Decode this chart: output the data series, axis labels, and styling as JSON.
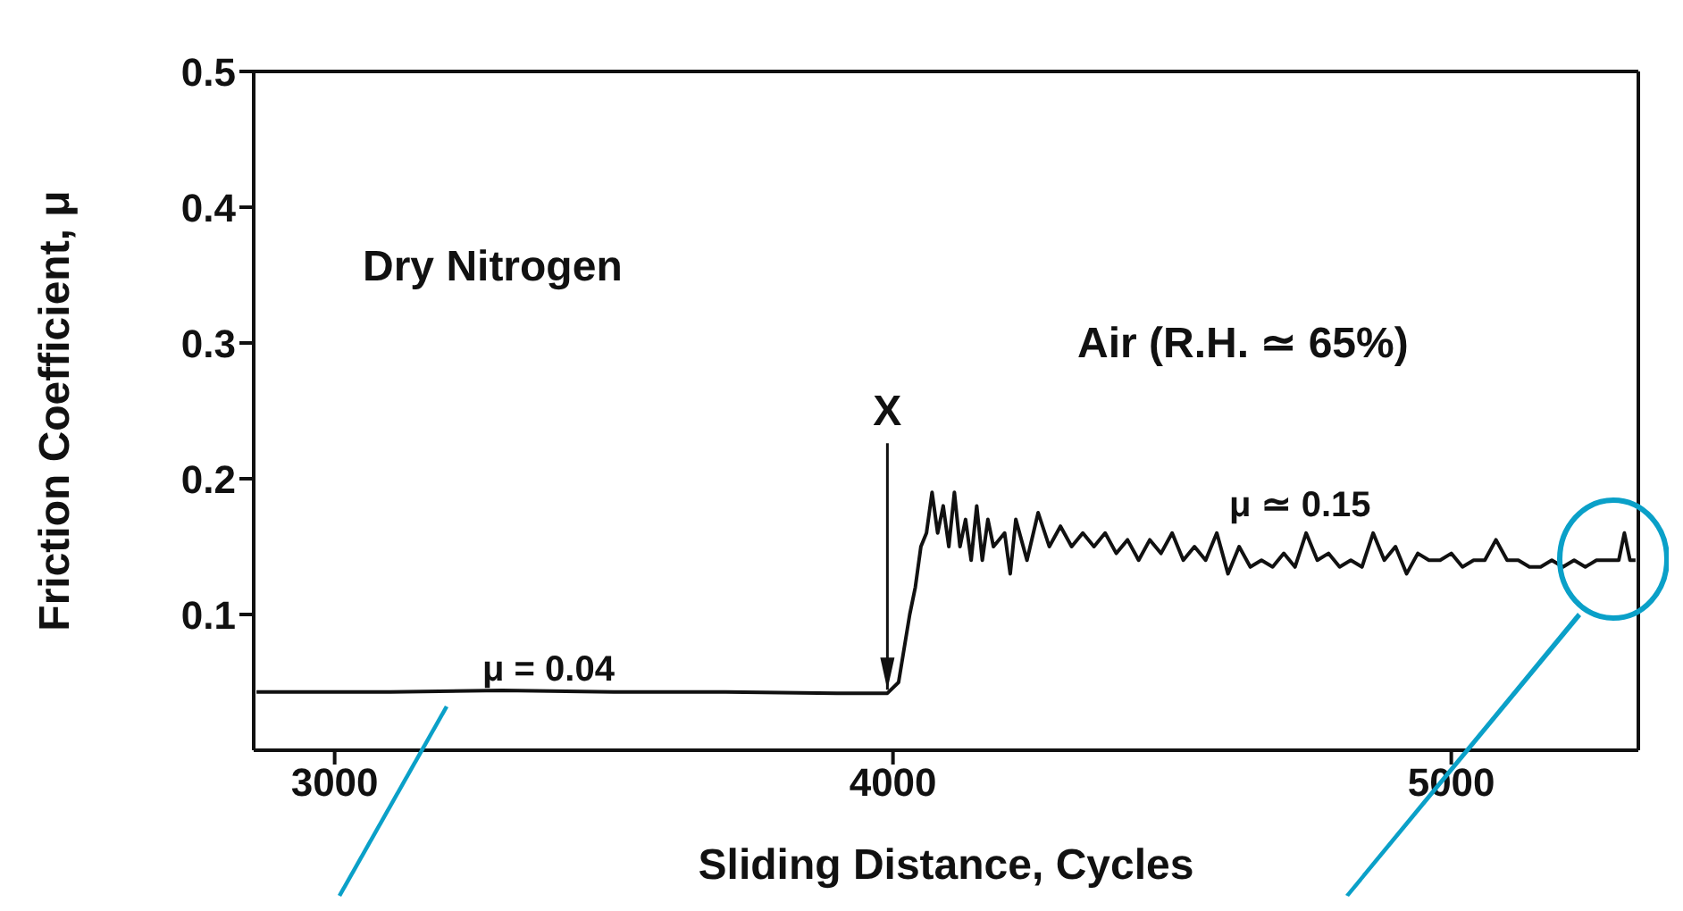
{
  "chart_data": {
    "type": "line",
    "xlabel": "Sliding Distance, Cycles",
    "ylabel": "Friction Coefficient, μ",
    "xlim": [
      2855,
      5335
    ],
    "xticks": [
      3000,
      4000,
      5000
    ],
    "ylim": [
      0,
      0.5
    ],
    "yticks": [
      0.1,
      0.2,
      0.3,
      0.4,
      0.5
    ],
    "marker": "none",
    "line_style": "solid",
    "series": [
      {
        "color": "#111111",
        "x": [
          2860,
          3100,
          3300,
          3500,
          3700,
          3900,
          3990,
          4010,
          4030,
          4040,
          4050,
          4060,
          4070,
          4080,
          4090,
          4100,
          4110,
          4120,
          4130,
          4140,
          4150,
          4160,
          4170,
          4180,
          4200,
          4210,
          4220,
          4240,
          4260,
          4280,
          4300,
          4320,
          4340,
          4360,
          4380,
          4400,
          4420,
          4440,
          4460,
          4480,
          4500,
          4520,
          4540,
          4560,
          4580,
          4600,
          4620,
          4640,
          4660,
          4680,
          4700,
          4720,
          4740,
          4760,
          4780,
          4800,
          4820,
          4840,
          4860,
          4880,
          4900,
          4920,
          4940,
          4960,
          4980,
          5000,
          5020,
          5040,
          5060,
          5080,
          5100,
          5120,
          5140,
          5160,
          5180,
          5200,
          5220,
          5240,
          5260,
          5280,
          5300,
          5310,
          5320,
          5330
        ],
        "values": [
          0.043,
          0.043,
          0.044,
          0.043,
          0.043,
          0.042,
          0.042,
          0.05,
          0.1,
          0.12,
          0.15,
          0.16,
          0.19,
          0.16,
          0.18,
          0.15,
          0.19,
          0.15,
          0.17,
          0.14,
          0.18,
          0.14,
          0.17,
          0.15,
          0.16,
          0.13,
          0.17,
          0.14,
          0.175,
          0.15,
          0.165,
          0.15,
          0.16,
          0.15,
          0.16,
          0.145,
          0.155,
          0.14,
          0.155,
          0.145,
          0.16,
          0.14,
          0.15,
          0.14,
          0.16,
          0.13,
          0.15,
          0.135,
          0.14,
          0.135,
          0.145,
          0.135,
          0.16,
          0.14,
          0.145,
          0.135,
          0.14,
          0.135,
          0.16,
          0.14,
          0.15,
          0.13,
          0.145,
          0.14,
          0.14,
          0.145,
          0.135,
          0.14,
          0.14,
          0.155,
          0.14,
          0.14,
          0.135,
          0.135,
          0.14,
          0.135,
          0.14,
          0.135,
          0.14,
          0.14,
          0.14,
          0.16,
          0.14,
          0.14
        ]
      }
    ],
    "annotations": [
      "Dry Nitrogen",
      "Air (R.H. ≃ 65%)",
      "μ = 0.04",
      "μ ≃ 0.15",
      {
        "text": "X",
        "x": 3990,
        "y": 0.042
      }
    ]
  }
}
